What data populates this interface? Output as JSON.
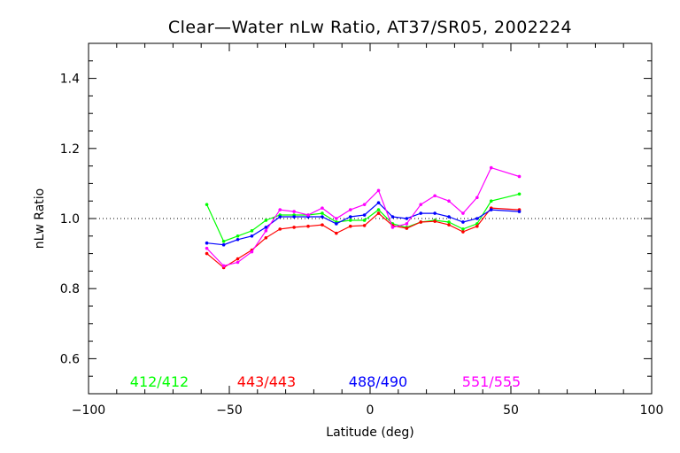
{
  "chart_data": {
    "type": "line",
    "title": "Clear—Water nLw Ratio, AT37/SR05, 2002224",
    "xlabel": "Latitude (deg)",
    "ylabel": "nLw Ratio",
    "xlim": [
      -100,
      100
    ],
    "ylim": [
      0.5,
      1.5
    ],
    "x_ticks": [
      "−100",
      "−50",
      "0",
      "50",
      "100"
    ],
    "y_ticks": [
      "0.6",
      "0.8",
      "1.0",
      "1.2",
      "1.4"
    ],
    "reference_line": {
      "y": 1.0,
      "style": "dotted"
    },
    "grid": false,
    "legend_position": "bottom",
    "series": [
      {
        "name": "412/412",
        "color": "#00ff00",
        "x": [
          -58,
          -52,
          -47,
          -42,
          -37,
          -32,
          -27,
          -22,
          -17,
          -12,
          -7,
          -2,
          3,
          8,
          13,
          18,
          23,
          28,
          33,
          38,
          43,
          53
        ],
        "y": [
          1.04,
          0.935,
          0.95,
          0.965,
          0.995,
          1.01,
          1.01,
          1.01,
          1.015,
          0.99,
          0.995,
          0.995,
          1.025,
          0.985,
          0.975,
          0.99,
          0.995,
          0.99,
          0.97,
          0.985,
          1.05,
          1.07
        ]
      },
      {
        "name": "443/443",
        "color": "#ff0000",
        "x": [
          -58,
          -52,
          -47,
          -42,
          -37,
          -32,
          -27,
          -22,
          -17,
          -12,
          -7,
          -2,
          3,
          8,
          13,
          18,
          23,
          28,
          33,
          38,
          43,
          53
        ],
        "y": [
          0.9,
          0.86,
          0.885,
          0.91,
          0.945,
          0.97,
          0.975,
          0.978,
          0.982,
          0.958,
          0.978,
          0.98,
          1.015,
          0.98,
          0.972,
          0.99,
          0.992,
          0.982,
          0.962,
          0.978,
          1.03,
          1.025
        ]
      },
      {
        "name": "488/490",
        "color": "#0000ff",
        "x": [
          -58,
          -52,
          -47,
          -42,
          -37,
          -32,
          -27,
          -22,
          -17,
          -12,
          -7,
          -2,
          3,
          8,
          13,
          18,
          23,
          28,
          33,
          38,
          43,
          53
        ],
        "y": [
          0.93,
          0.925,
          0.94,
          0.95,
          0.975,
          1.005,
          1.005,
          1.005,
          1.005,
          0.985,
          1.005,
          1.01,
          1.045,
          1.005,
          1.0,
          1.015,
          1.015,
          1.005,
          0.99,
          1.0,
          1.025,
          1.02
        ]
      },
      {
        "name": "551/555",
        "color": "#ff00ff",
        "x": [
          -58,
          -52,
          -47,
          -42,
          -37,
          -32,
          -27,
          -22,
          -17,
          -12,
          -7,
          -2,
          3,
          8,
          13,
          18,
          23,
          28,
          33,
          38,
          43,
          53
        ],
        "y": [
          0.915,
          0.865,
          0.875,
          0.905,
          0.965,
          1.025,
          1.02,
          1.01,
          1.03,
          1.0,
          1.025,
          1.04,
          1.08,
          0.975,
          0.985,
          1.04,
          1.065,
          1.05,
          1.015,
          1.06,
          1.145,
          1.12
        ]
      }
    ]
  }
}
